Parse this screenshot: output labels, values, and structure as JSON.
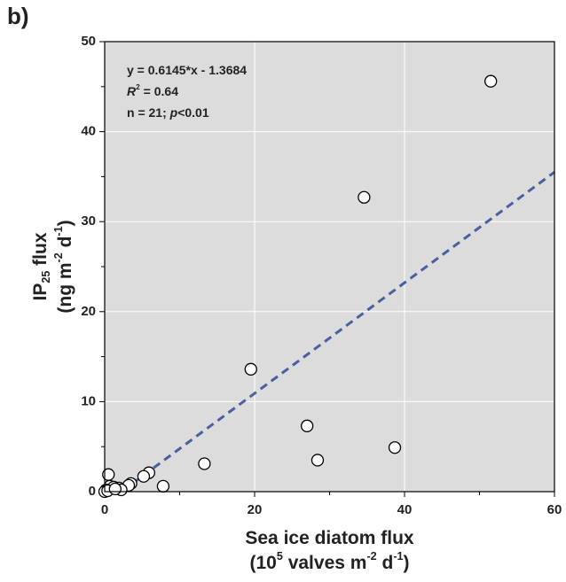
{
  "chart_data": {
    "type": "scatter",
    "panel_label": "b)",
    "x_label": [
      [
        {
          "text": "Sea ice diatom flux"
        }
      ],
      [
        {
          "text": "(10"
        },
        {
          "text": "5",
          "style": "sup"
        },
        {
          "text": " valves m"
        },
        {
          "text": "-2",
          "style": "sup"
        },
        {
          "text": " d"
        },
        {
          "text": "-1",
          "style": "sup"
        },
        {
          "text": ")"
        }
      ]
    ],
    "y_label": [
      [
        {
          "text": "IP"
        },
        {
          "text": "25",
          "style": "sub"
        },
        {
          "text": " flux"
        }
      ],
      [
        {
          "text": "(ng m"
        },
        {
          "text": "-2",
          "style": "sup"
        },
        {
          "text": " d"
        },
        {
          "text": "-1",
          "style": "sup"
        },
        {
          "text": ")"
        }
      ]
    ],
    "annotations": [
      [
        {
          "text": "y = 0.6145*x - 1.3684"
        }
      ],
      [
        {
          "text": "R",
          "style": "italic"
        },
        {
          "text": "2",
          "style": "sup"
        },
        {
          "text": " = 0.64"
        }
      ],
      [
        {
          "text": "n = 21; "
        },
        {
          "text": "p",
          "style": "italic"
        },
        {
          "text": "<0.01"
        }
      ]
    ],
    "xlim": [
      0,
      60
    ],
    "ylim": [
      0,
      50
    ],
    "xticks": [
      0,
      20,
      40,
      60
    ],
    "yticks": [
      0,
      10,
      20,
      30,
      40,
      50
    ],
    "xminorticks": [
      10,
      30,
      50
    ],
    "yminorticks": [
      5,
      15,
      25,
      35,
      45
    ],
    "grid": true,
    "background": "#dcdcdc",
    "grid_color": "#ffffff",
    "series": [
      {
        "marker_fill": "#ffffff",
        "color": "#000000",
        "x": [
          51.5,
          34.6,
          19.5,
          27.0,
          38.7,
          28.4,
          13.3,
          7.8,
          5.9,
          5.2,
          3.5,
          3.2,
          0.5,
          0.7,
          1.2,
          1.9,
          2.2,
          0.2,
          0,
          0.4,
          1.4
        ],
        "values": [
          45.6,
          32.7,
          13.6,
          7.3,
          4.9,
          3.5,
          3.1,
          0.6,
          2.1,
          1.7,
          0.9,
          0.7,
          1.9,
          0.6,
          0.5,
          0.4,
          0.2,
          0.2,
          0,
          0.1,
          0.3
        ]
      },
      {
        "style": "dashed-line",
        "color": "#4a5fa0",
        "x": [
          2.23,
          60
        ],
        "values": [
          0,
          35.5
        ]
      }
    ]
  }
}
